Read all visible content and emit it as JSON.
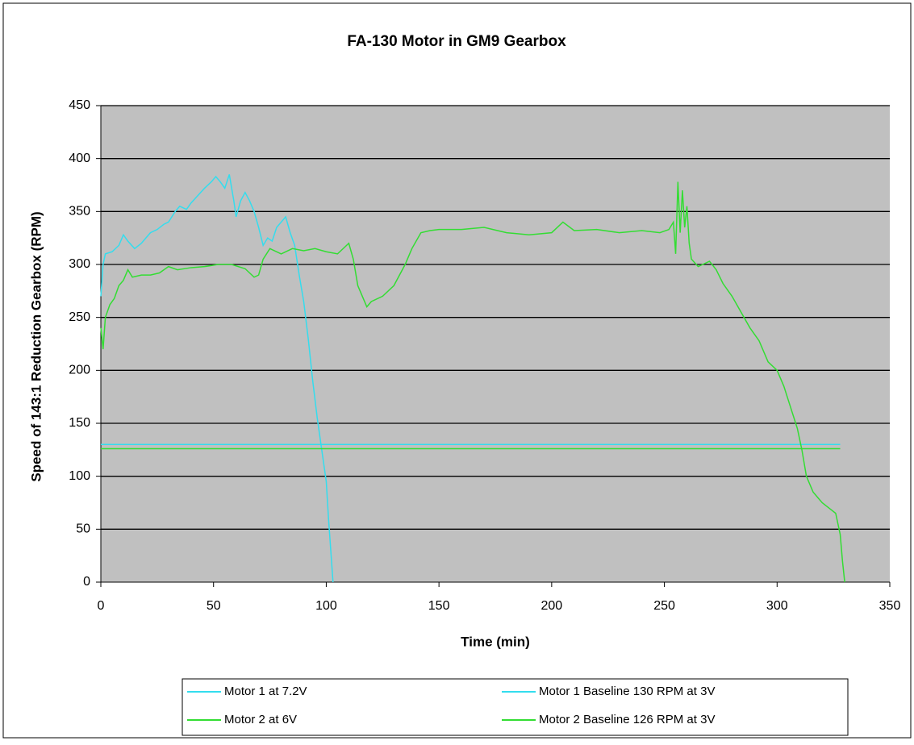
{
  "chart_data": {
    "type": "line",
    "title": "FA-130 Motor in GM9 Gearbox",
    "xlabel": "Time (min)",
    "ylabel": "Speed of 143:1 Reduction Gearbox (RPM)",
    "xlim": [
      0,
      350
    ],
    "ylim": [
      0,
      450
    ],
    "xticks": [
      0,
      50,
      100,
      150,
      200,
      250,
      300,
      350
    ],
    "yticks": [
      0,
      50,
      100,
      150,
      200,
      250,
      300,
      350,
      400,
      450
    ],
    "grid": true,
    "legend": "bottom",
    "series": [
      {
        "name": "Motor 1 at 7.2V",
        "color": "#33ddee",
        "x": [
          0,
          1,
          2,
          5,
          8,
          10,
          12,
          15,
          18,
          20,
          22,
          25,
          28,
          30,
          33,
          35,
          38,
          40,
          43,
          46,
          49,
          51,
          53,
          55,
          57,
          59,
          60,
          62,
          64,
          66,
          68,
          70,
          72,
          74,
          76,
          78,
          80,
          82,
          84,
          86,
          88,
          90,
          92,
          94,
          96,
          98,
          100,
          101,
          102,
          103
        ],
        "values": [
          270,
          300,
          310,
          312,
          318,
          328,
          322,
          315,
          320,
          325,
          330,
          333,
          338,
          340,
          350,
          355,
          352,
          358,
          365,
          372,
          378,
          383,
          378,
          372,
          385,
          360,
          345,
          360,
          368,
          360,
          350,
          335,
          318,
          325,
          322,
          335,
          340,
          345,
          330,
          318,
          290,
          265,
          230,
          190,
          155,
          125,
          95,
          60,
          30,
          0
        ]
      },
      {
        "name": "Motor 1 Baseline 130 RPM at 3V",
        "color": "#33ddee",
        "x": [
          0,
          328
        ],
        "values": [
          130,
          130
        ]
      },
      {
        "name": "Motor 2 at 6V",
        "color": "#33dd33",
        "x": [
          0,
          1,
          2,
          4,
          6,
          8,
          10,
          12,
          14,
          18,
          22,
          26,
          30,
          34,
          40,
          46,
          52,
          58,
          64,
          68,
          70,
          72,
          75,
          80,
          85,
          90,
          95,
          100,
          105,
          110,
          112,
          114,
          116,
          118,
          120,
          125,
          130,
          135,
          138,
          142,
          146,
          150,
          160,
          170,
          180,
          190,
          200,
          205,
          210,
          220,
          230,
          240,
          248,
          252,
          254,
          255,
          256,
          257,
          258,
          259,
          260,
          261,
          262,
          265,
          270,
          273,
          276,
          280,
          284,
          288,
          292,
          296,
          300,
          303,
          306,
          309,
          311,
          313,
          316,
          320,
          323,
          326,
          328,
          329,
          330
        ],
        "values": [
          240,
          220,
          250,
          262,
          268,
          280,
          285,
          295,
          288,
          290,
          290,
          292,
          298,
          295,
          297,
          298,
          300,
          300,
          296,
          288,
          290,
          305,
          315,
          310,
          315,
          313,
          315,
          312,
          310,
          320,
          305,
          280,
          270,
          260,
          265,
          270,
          280,
          300,
          315,
          330,
          332,
          333,
          333,
          335,
          330,
          328,
          330,
          340,
          332,
          333,
          330,
          332,
          330,
          333,
          340,
          310,
          378,
          330,
          370,
          335,
          355,
          320,
          305,
          298,
          303,
          295,
          282,
          270,
          255,
          240,
          228,
          208,
          200,
          185,
          165,
          145,
          125,
          100,
          85,
          75,
          70,
          65,
          45,
          20,
          0
        ]
      },
      {
        "name": "Motor 2 Baseline 126 RPM at 3V",
        "color": "#33dd33",
        "x": [
          0,
          328
        ],
        "values": [
          126,
          126
        ]
      }
    ]
  }
}
